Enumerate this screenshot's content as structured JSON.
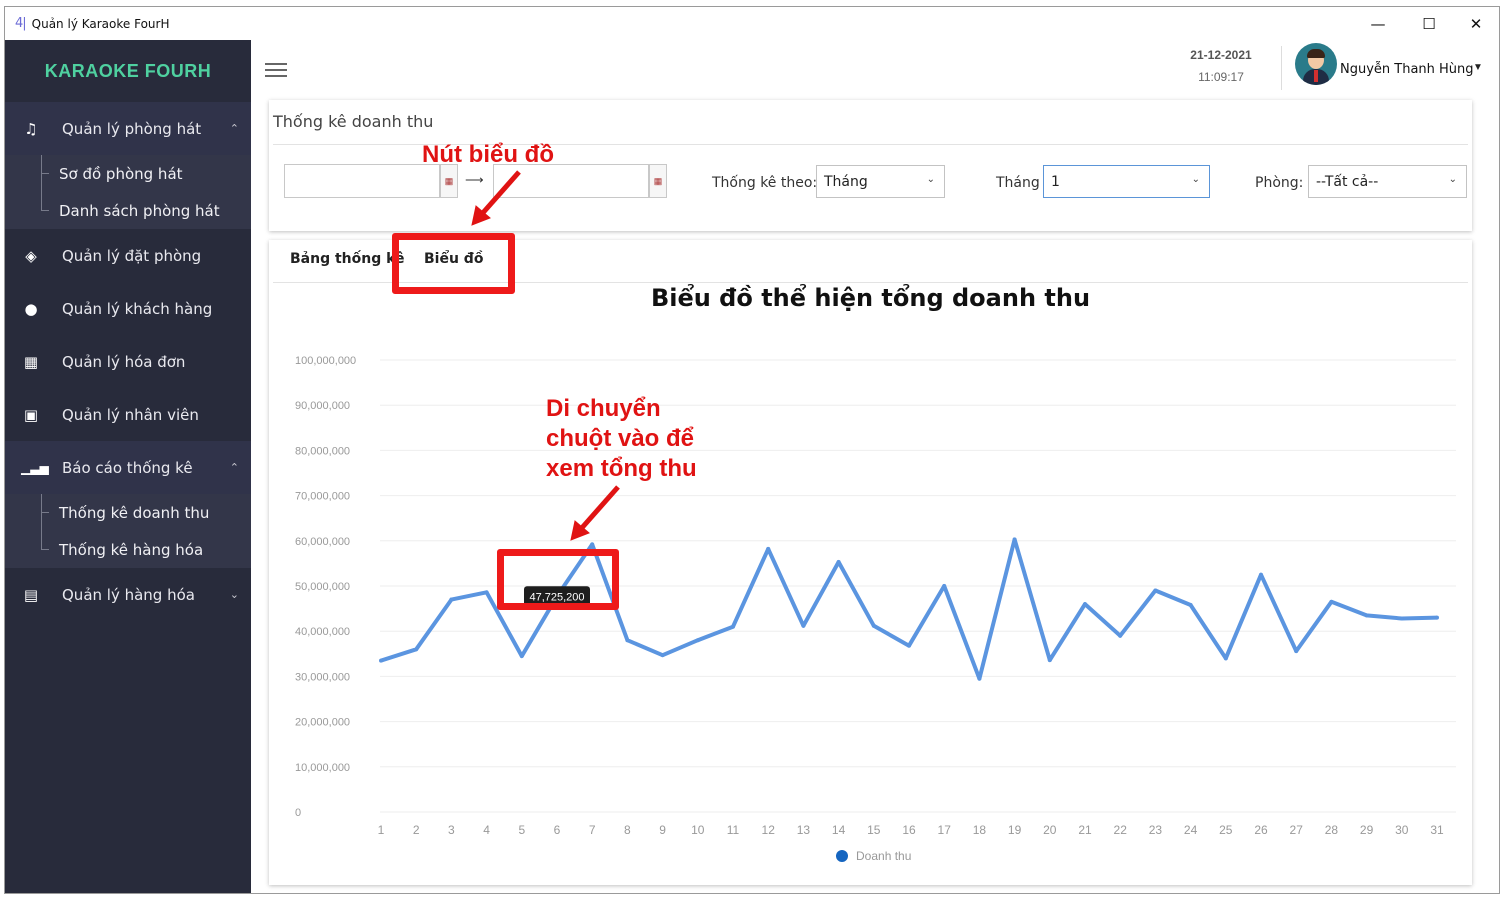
{
  "window": {
    "icon_text": "4|",
    "title": "Quản lý Karaoke FourH",
    "minimize": "—",
    "maximize": "☐",
    "close": "✕"
  },
  "sidebar": {
    "brand": "KARAOKE FOURH",
    "items": [
      {
        "label": "Quản lý phòng hát",
        "icon": "singers-icon",
        "expanded": true,
        "children": [
          "Sơ đồ phòng hát",
          "Danh sách phòng hát"
        ]
      },
      {
        "label": "Quản lý đặt phòng",
        "icon": "booking-icon"
      },
      {
        "label": "Quản lý khách hàng",
        "icon": "user-icon"
      },
      {
        "label": "Quản lý hóa đơn",
        "icon": "invoice-icon"
      },
      {
        "label": "Quản lý nhân viên",
        "icon": "badge-icon"
      },
      {
        "label": "Báo cáo thống kê",
        "icon": "report-chart-icon",
        "expanded": true,
        "children": [
          "Thống kê doanh thu",
          "Thống kê hàng hóa"
        ]
      },
      {
        "label": "Quản lý hàng hóa",
        "icon": "inventory-icon",
        "expanded": false
      }
    ]
  },
  "header": {
    "date": "21-12-2021",
    "time": "11:09:17",
    "user_name": "Nguyễn Thanh Hùng"
  },
  "filter": {
    "title": "Thống kê doanh thu",
    "from_date": "",
    "to_date": "",
    "arrow": "⟶",
    "group_by_label": "Thống kê theo:",
    "group_by_value": "Tháng",
    "month_label": "Tháng",
    "month_value": "1",
    "room_label": "Phòng:",
    "room_value": "--Tất cả--"
  },
  "tabs": {
    "table": "Bảng thống kê",
    "chart": "Biểu đồ"
  },
  "annotations": {
    "chart_button_note": "Nút biểu đồ",
    "hover_note_line1": "Di chuyển",
    "hover_note_line2": "chuột vào để",
    "hover_note_line3": "xem tổng thu"
  },
  "colors": {
    "sidebar_bg": "#282b3b",
    "brand_green": "#4fd1a0",
    "line_blue": "#5b95e0",
    "legend_dot": "#1565c0",
    "annotation_red": "#e01313"
  },
  "chart_data": {
    "type": "line",
    "title": "Biểu đồ thể hiện tổng doanh thu",
    "xlabel": "",
    "ylabel": "",
    "categories": [
      "1",
      "2",
      "3",
      "4",
      "5",
      "6",
      "7",
      "8",
      "9",
      "10",
      "11",
      "12",
      "13",
      "14",
      "15",
      "16",
      "17",
      "18",
      "19",
      "20",
      "21",
      "22",
      "23",
      "24",
      "25",
      "26",
      "27",
      "28",
      "29",
      "30",
      "31"
    ],
    "y_ticks": [
      "0",
      "10,000,000",
      "20,000,000",
      "30,000,000",
      "40,000,000",
      "50,000,000",
      "60,000,000",
      "70,000,000",
      "80,000,000",
      "90,000,000",
      "100,000,000"
    ],
    "ylim": [
      0,
      100000000
    ],
    "series": [
      {
        "name": "Doanh thu",
        "values": [
          33500000,
          36000000,
          47000000,
          48600000,
          34500000,
          47725200,
          59200000,
          38000000,
          34700000,
          38000000,
          41000000,
          58200000,
          41200000,
          55300000,
          41200000,
          36800000,
          50000000,
          29500000,
          60300000,
          33600000,
          46000000,
          39000000,
          49000000,
          45800000,
          34000000,
          52500000,
          35600000,
          46500000,
          43500000,
          42800000,
          43000000
        ]
      }
    ],
    "tooltip": {
      "category": "6",
      "text": "47,725,200"
    },
    "legend": "bottom-center",
    "grid": true
  }
}
